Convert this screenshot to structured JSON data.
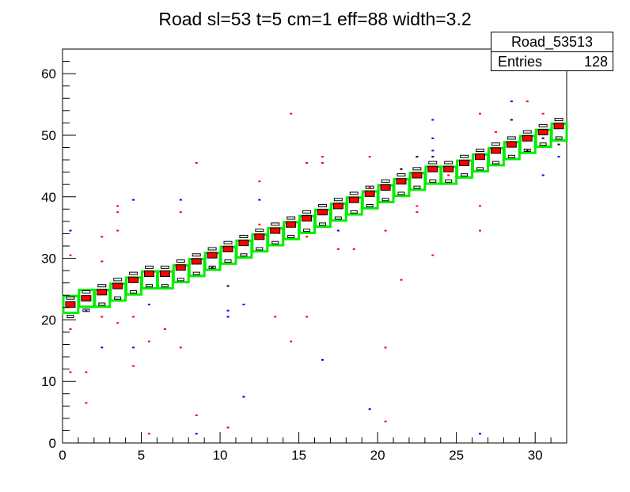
{
  "chart_data": {
    "type": "heatmap",
    "title": "Road sl=53 t=5 cm=1 eff=88 width=3.2",
    "xlabel": "",
    "ylabel": "",
    "xlim": [
      0,
      32
    ],
    "ylim": [
      0,
      64
    ],
    "x_ticks": [
      0,
      5,
      10,
      15,
      20,
      25,
      30
    ],
    "y_ticks": [
      0,
      10,
      20,
      30,
      40,
      50,
      60
    ],
    "grid": false,
    "stats_box": {
      "name": "Road_53513",
      "entries_label": "Entries",
      "entries_value": "128"
    },
    "road_boxes_color": "#00ee00",
    "road_boxes": [
      {
        "x": 0,
        "y": 21
      },
      {
        "x": 1,
        "y": 22
      },
      {
        "x": 2,
        "y": 22
      },
      {
        "x": 3,
        "y": 23
      },
      {
        "x": 4,
        "y": 24
      },
      {
        "x": 5,
        "y": 25
      },
      {
        "x": 6,
        "y": 25
      },
      {
        "x": 7,
        "y": 26
      },
      {
        "x": 8,
        "y": 27
      },
      {
        "x": 9,
        "y": 28
      },
      {
        "x": 10,
        "y": 29
      },
      {
        "x": 11,
        "y": 30
      },
      {
        "x": 12,
        "y": 31
      },
      {
        "x": 13,
        "y": 32
      },
      {
        "x": 14,
        "y": 33
      },
      {
        "x": 15,
        "y": 34
      },
      {
        "x": 16,
        "y": 35
      },
      {
        "x": 17,
        "y": 36
      },
      {
        "x": 18,
        "y": 37
      },
      {
        "x": 19,
        "y": 38
      },
      {
        "x": 20,
        "y": 39
      },
      {
        "x": 21,
        "y": 40
      },
      {
        "x": 22,
        "y": 41
      },
      {
        "x": 23,
        "y": 42
      },
      {
        "x": 24,
        "y": 42
      },
      {
        "x": 25,
        "y": 43
      },
      {
        "x": 26,
        "y": 44
      },
      {
        "x": 27,
        "y": 45
      },
      {
        "x": 28,
        "y": 46
      },
      {
        "x": 29,
        "y": 47
      },
      {
        "x": 30,
        "y": 48
      },
      {
        "x": 31,
        "y": 49
      }
    ],
    "road_center": [
      {
        "x": 0,
        "y": 22
      },
      {
        "x": 1,
        "y": 23
      },
      {
        "x": 2,
        "y": 24
      },
      {
        "x": 3,
        "y": 25
      },
      {
        "x": 4,
        "y": 26
      },
      {
        "x": 5,
        "y": 27
      },
      {
        "x": 6,
        "y": 27
      },
      {
        "x": 7,
        "y": 28
      },
      {
        "x": 8,
        "y": 29
      },
      {
        "x": 9,
        "y": 30
      },
      {
        "x": 10,
        "y": 31
      },
      {
        "x": 11,
        "y": 32
      },
      {
        "x": 12,
        "y": 33
      },
      {
        "x": 13,
        "y": 34
      },
      {
        "x": 14,
        "y": 35
      },
      {
        "x": 15,
        "y": 36
      },
      {
        "x": 16,
        "y": 37
      },
      {
        "x": 17,
        "y": 38
      },
      {
        "x": 18,
        "y": 39
      },
      {
        "x": 19,
        "y": 40
      },
      {
        "x": 20,
        "y": 41
      },
      {
        "x": 21,
        "y": 42
      },
      {
        "x": 22,
        "y": 43
      },
      {
        "x": 23,
        "y": 44
      },
      {
        "x": 24,
        "y": 44
      },
      {
        "x": 25,
        "y": 45
      },
      {
        "x": 26,
        "y": 46
      },
      {
        "x": 27,
        "y": 47
      },
      {
        "x": 28,
        "y": 48
      },
      {
        "x": 29,
        "y": 49
      },
      {
        "x": 30,
        "y": 50
      },
      {
        "x": 31,
        "y": 51
      }
    ],
    "scatter_red": [
      {
        "x": 0,
        "y": 11
      },
      {
        "x": 0,
        "y": 18
      },
      {
        "x": 0,
        "y": 30
      },
      {
        "x": 1,
        "y": 6
      },
      {
        "x": 1,
        "y": 11
      },
      {
        "x": 2,
        "y": 20
      },
      {
        "x": 2,
        "y": 29
      },
      {
        "x": 2,
        "y": 33
      },
      {
        "x": 3,
        "y": 19
      },
      {
        "x": 3,
        "y": 34
      },
      {
        "x": 3,
        "y": 37
      },
      {
        "x": 3,
        "y": 38
      },
      {
        "x": 4,
        "y": 12
      },
      {
        "x": 4,
        "y": 20
      },
      {
        "x": 5,
        "y": 1
      },
      {
        "x": 5,
        "y": 16
      },
      {
        "x": 6,
        "y": 18
      },
      {
        "x": 7,
        "y": 15
      },
      {
        "x": 7,
        "y": 37
      },
      {
        "x": 8,
        "y": 4
      },
      {
        "x": 8,
        "y": 45
      },
      {
        "x": 10,
        "y": 2
      },
      {
        "x": 12,
        "y": 35
      },
      {
        "x": 12,
        "y": 42
      },
      {
        "x": 13,
        "y": 20
      },
      {
        "x": 14,
        "y": 16
      },
      {
        "x": 14,
        "y": 53
      },
      {
        "x": 15,
        "y": 33
      },
      {
        "x": 15,
        "y": 45
      },
      {
        "x": 15,
        "y": 20
      },
      {
        "x": 16,
        "y": 45
      },
      {
        "x": 16,
        "y": 46
      },
      {
        "x": 17,
        "y": 31
      },
      {
        "x": 18,
        "y": 31
      },
      {
        "x": 19,
        "y": 41
      },
      {
        "x": 19,
        "y": 46
      },
      {
        "x": 20,
        "y": 3
      },
      {
        "x": 20,
        "y": 15
      },
      {
        "x": 20,
        "y": 34
      },
      {
        "x": 21,
        "y": 26
      },
      {
        "x": 22,
        "y": 37
      },
      {
        "x": 22,
        "y": 38
      },
      {
        "x": 23,
        "y": 30
      },
      {
        "x": 24,
        "y": 43
      },
      {
        "x": 26,
        "y": 34
      },
      {
        "x": 26,
        "y": 38
      },
      {
        "x": 26,
        "y": 53
      },
      {
        "x": 27,
        "y": 50
      },
      {
        "x": 29,
        "y": 55
      },
      {
        "x": 30,
        "y": 53
      }
    ],
    "scatter_blue": [
      {
        "x": 0,
        "y": 34
      },
      {
        "x": 1,
        "y": 21
      },
      {
        "x": 2,
        "y": 15
      },
      {
        "x": 4,
        "y": 39
      },
      {
        "x": 4,
        "y": 15
      },
      {
        "x": 5,
        "y": 22
      },
      {
        "x": 7,
        "y": 39
      },
      {
        "x": 8,
        "y": 1
      },
      {
        "x": 10,
        "y": 20
      },
      {
        "x": 10,
        "y": 21
      },
      {
        "x": 11,
        "y": 22
      },
      {
        "x": 11,
        "y": 7
      },
      {
        "x": 12,
        "y": 39
      },
      {
        "x": 16,
        "y": 13
      },
      {
        "x": 17,
        "y": 34
      },
      {
        "x": 19,
        "y": 5
      },
      {
        "x": 23,
        "y": 52
      },
      {
        "x": 23,
        "y": 49
      },
      {
        "x": 23,
        "y": 47
      },
      {
        "x": 26,
        "y": 1
      },
      {
        "x": 28,
        "y": 55
      },
      {
        "x": 30,
        "y": 43
      },
      {
        "x": 31,
        "y": 46
      }
    ],
    "scatter_black": [
      {
        "x": 9,
        "y": 28
      },
      {
        "x": 10,
        "y": 25
      },
      {
        "x": 21,
        "y": 44
      },
      {
        "x": 22,
        "y": 46
      },
      {
        "x": 23,
        "y": 46
      },
      {
        "x": 28,
        "y": 52
      },
      {
        "x": 29,
        "y": 47
      },
      {
        "x": 30,
        "y": 49
      },
      {
        "x": 31,
        "y": 48
      }
    ]
  }
}
